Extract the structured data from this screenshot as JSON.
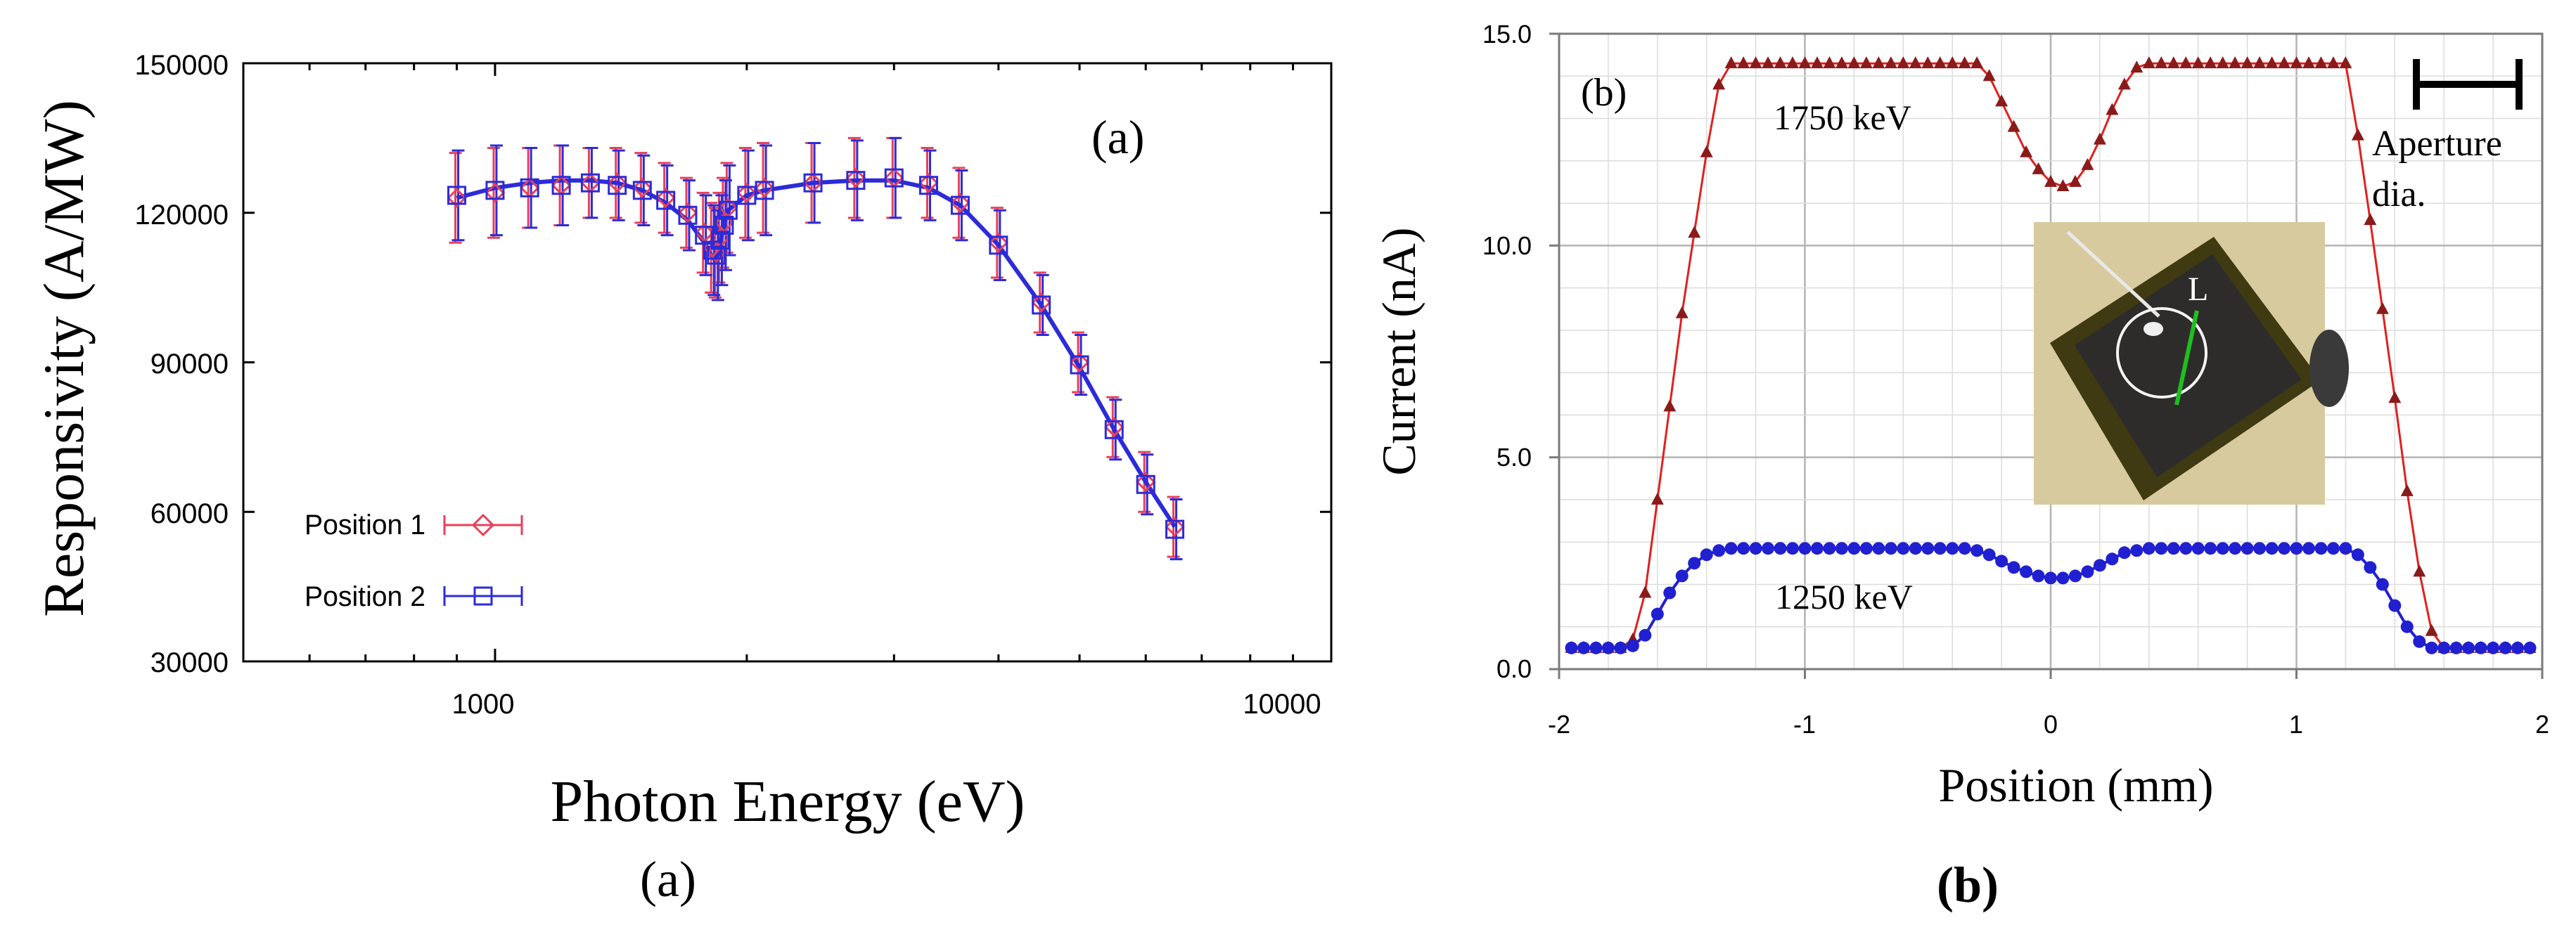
{
  "chart_data": [
    {
      "type": "scatter",
      "panel_label": "(a)",
      "caption": "(a)",
      "title": "",
      "xlabel": "Photon Energy (eV)",
      "ylabel": "Responsivity (A/MW)",
      "xscale": "log",
      "xlim": [
        500,
        10000
      ],
      "ylim": [
        30000,
        150000
      ],
      "x_ticks": [
        1000,
        10000
      ],
      "x_tick_labels": [
        "1000",
        "10000"
      ],
      "y_ticks": [
        30000,
        60000,
        90000,
        120000,
        150000
      ],
      "y_tick_labels": [
        "30000",
        "60000",
        "90000",
        "120000",
        "150000"
      ],
      "grid": false,
      "legend_position": "bottom-left",
      "series": [
        {
          "name": "Position 1",
          "marker": "diamond",
          "color": "#e8405a",
          "x": [
            900,
            1000,
            1100,
            1200,
            1300,
            1400,
            1500,
            1600,
            1700,
            1780,
            1820,
            1840,
            1860,
            1880,
            1900,
            2000,
            2100,
            2400,
            2700,
            3000,
            3300,
            3600,
            4000,
            4500,
            5000,
            5500,
            6000,
            6500
          ],
          "y": [
            123000,
            124000,
            125000,
            125500,
            126000,
            126000,
            125000,
            123000,
            120000,
            116000,
            113000,
            112000,
            115000,
            118000,
            121000,
            124000,
            125000,
            126000,
            127000,
            127000,
            126000,
            122000,
            114000,
            102000,
            90000,
            77000,
            66000,
            57000
          ],
          "yerr": [
            9000,
            9000,
            8000,
            8000,
            7000,
            7000,
            7000,
            7000,
            7000,
            8000,
            9000,
            9000,
            9000,
            9000,
            9000,
            9000,
            9000,
            8000,
            8000,
            8000,
            7000,
            7000,
            7000,
            6000,
            6000,
            6000,
            6000,
            6000
          ]
        },
        {
          "name": "Position 2",
          "marker": "square",
          "color": "#2d2bd8",
          "x": [
            900,
            1000,
            1100,
            1200,
            1300,
            1400,
            1500,
            1600,
            1700,
            1780,
            1820,
            1840,
            1860,
            1880,
            1900,
            2000,
            2100,
            2400,
            2700,
            3000,
            3300,
            3600,
            4000,
            4500,
            5000,
            5500,
            6000,
            6500
          ],
          "y": [
            123500,
            124500,
            125000,
            125500,
            126000,
            125500,
            124500,
            122500,
            119500,
            115500,
            112500,
            111500,
            114500,
            117500,
            120500,
            123500,
            124500,
            126000,
            126500,
            127000,
            125500,
            121500,
            113500,
            101500,
            89500,
            76500,
            65500,
            56500
          ],
          "yerr": [
            9000,
            9000,
            8000,
            8000,
            7000,
            7000,
            7000,
            7000,
            7000,
            8000,
            9000,
            9000,
            9000,
            9000,
            9000,
            9000,
            9000,
            8000,
            8000,
            8000,
            7000,
            7000,
            7000,
            6000,
            6000,
            6000,
            6000,
            6000
          ]
        }
      ],
      "fit_curve": {
        "color": "#2d2bd8",
        "x": [
          900,
          1000,
          1100,
          1200,
          1300,
          1400,
          1500,
          1600,
          1700,
          1780,
          1820,
          1840,
          1860,
          1880,
          1900,
          2000,
          2100,
          2400,
          2700,
          3000,
          3300,
          3600,
          4000,
          4500,
          5000,
          5500,
          6000,
          6500
        ],
        "y": [
          123000,
          125000,
          126000,
          126500,
          126500,
          126000,
          124500,
          122000,
          118500,
          114000,
          111000,
          110500,
          114000,
          118000,
          120500,
          123500,
          124500,
          126000,
          126500,
          126500,
          125000,
          121500,
          113500,
          101500,
          89000,
          76500,
          66000,
          57000
        ]
      }
    },
    {
      "type": "line",
      "panel_label": "(b)",
      "caption": "(b)",
      "title": "",
      "xlabel": "Position (mm)",
      "ylabel": "Current (nA)",
      "xlim": [
        -2,
        2
      ],
      "ylim": [
        0,
        15
      ],
      "x_ticks": [
        -2,
        -1,
        0,
        1,
        2
      ],
      "x_tick_labels": [
        "-2",
        "-1",
        "0",
        "1",
        "2"
      ],
      "y_ticks": [
        0,
        5,
        10,
        15
      ],
      "y_tick_labels": [
        "0.0",
        "5.0",
        "10.0",
        "15.0"
      ],
      "grid": true,
      "series": [
        {
          "name": "1750 keV",
          "marker": "triangle",
          "color": "#8b1a1a",
          "line_color": "#e02020",
          "x": [
            -1.95,
            -1.9,
            -1.85,
            -1.8,
            -1.75,
            -1.7,
            -1.65,
            -1.6,
            -1.55,
            -1.5,
            -1.45,
            -1.4,
            -1.35,
            -1.3,
            -1.25,
            -1.2,
            -1.15,
            -1.1,
            -1.05,
            -1.0,
            -0.95,
            -0.9,
            -0.85,
            -0.8,
            -0.75,
            -0.7,
            -0.65,
            -0.6,
            -0.55,
            -0.5,
            -0.45,
            -0.4,
            -0.35,
            -0.3,
            -0.25,
            -0.2,
            -0.15,
            -0.1,
            -0.05,
            0.0,
            0.05,
            0.1,
            0.15,
            0.2,
            0.25,
            0.3,
            0.35,
            0.4,
            0.45,
            0.5,
            0.55,
            0.6,
            0.65,
            0.7,
            0.75,
            0.8,
            0.85,
            0.9,
            0.95,
            1.0,
            1.05,
            1.1,
            1.15,
            1.2,
            1.25,
            1.3,
            1.35,
            1.4,
            1.45,
            1.5,
            1.55,
            1.6,
            1.65,
            1.7,
            1.75,
            1.8,
            1.85,
            1.9,
            1.95
          ],
          "y": [
            0.5,
            0.5,
            0.5,
            0.5,
            0.5,
            0.7,
            1.8,
            4.0,
            6.2,
            8.4,
            10.3,
            12.2,
            13.8,
            14.3,
            14.3,
            14.3,
            14.3,
            14.3,
            14.3,
            14.3,
            14.3,
            14.3,
            14.3,
            14.3,
            14.3,
            14.3,
            14.3,
            14.3,
            14.3,
            14.3,
            14.3,
            14.3,
            14.3,
            14.3,
            14.0,
            13.4,
            12.8,
            12.2,
            11.8,
            11.5,
            11.4,
            11.5,
            11.9,
            12.5,
            13.2,
            13.8,
            14.2,
            14.3,
            14.3,
            14.3,
            14.3,
            14.3,
            14.3,
            14.3,
            14.3,
            14.3,
            14.3,
            14.3,
            14.3,
            14.3,
            14.3,
            14.3,
            14.3,
            14.3,
            12.6,
            10.6,
            8.5,
            6.4,
            4.2,
            2.3,
            0.9,
            0.5,
            0.5,
            0.5,
            0.5,
            0.5,
            0.5,
            0.5,
            0.5
          ]
        },
        {
          "name": "1250 keV",
          "marker": "circle",
          "color": "#2020d0",
          "line_color": "#2020d0",
          "x": [
            -1.95,
            -1.9,
            -1.85,
            -1.8,
            -1.75,
            -1.7,
            -1.65,
            -1.6,
            -1.55,
            -1.5,
            -1.45,
            -1.4,
            -1.35,
            -1.3,
            -1.25,
            -1.2,
            -1.15,
            -1.1,
            -1.05,
            -1.0,
            -0.95,
            -0.9,
            -0.85,
            -0.8,
            -0.75,
            -0.7,
            -0.65,
            -0.6,
            -0.55,
            -0.5,
            -0.45,
            -0.4,
            -0.35,
            -0.3,
            -0.25,
            -0.2,
            -0.15,
            -0.1,
            -0.05,
            0.0,
            0.05,
            0.1,
            0.15,
            0.2,
            0.25,
            0.3,
            0.35,
            0.4,
            0.45,
            0.5,
            0.55,
            0.6,
            0.65,
            0.7,
            0.75,
            0.8,
            0.85,
            0.9,
            0.95,
            1.0,
            1.05,
            1.1,
            1.15,
            1.2,
            1.25,
            1.3,
            1.35,
            1.4,
            1.45,
            1.5,
            1.55,
            1.6,
            1.65,
            1.7,
            1.75,
            1.8,
            1.85,
            1.9,
            1.95
          ],
          "y": [
            0.5,
            0.5,
            0.5,
            0.5,
            0.5,
            0.55,
            0.8,
            1.3,
            1.8,
            2.2,
            2.5,
            2.7,
            2.8,
            2.85,
            2.85,
            2.85,
            2.85,
            2.85,
            2.85,
            2.85,
            2.85,
            2.85,
            2.85,
            2.85,
            2.85,
            2.85,
            2.85,
            2.85,
            2.85,
            2.85,
            2.85,
            2.85,
            2.85,
            2.8,
            2.7,
            2.55,
            2.4,
            2.3,
            2.2,
            2.15,
            2.15,
            2.2,
            2.3,
            2.45,
            2.6,
            2.75,
            2.8,
            2.85,
            2.85,
            2.85,
            2.85,
            2.85,
            2.85,
            2.85,
            2.85,
            2.85,
            2.85,
            2.85,
            2.85,
            2.85,
            2.85,
            2.85,
            2.85,
            2.85,
            2.7,
            2.4,
            2.0,
            1.5,
            1.0,
            0.65,
            0.5,
            0.5,
            0.5,
            0.5,
            0.5,
            0.5,
            0.5,
            0.5,
            0.5
          ]
        }
      ],
      "annotations": {
        "upper_curve_label": "1750 keV",
        "lower_curve_label": "1250 keV",
        "scale_bar_label_line1": "Aperture",
        "scale_bar_label_line2": "dia.",
        "inset_label": "L"
      }
    }
  ]
}
